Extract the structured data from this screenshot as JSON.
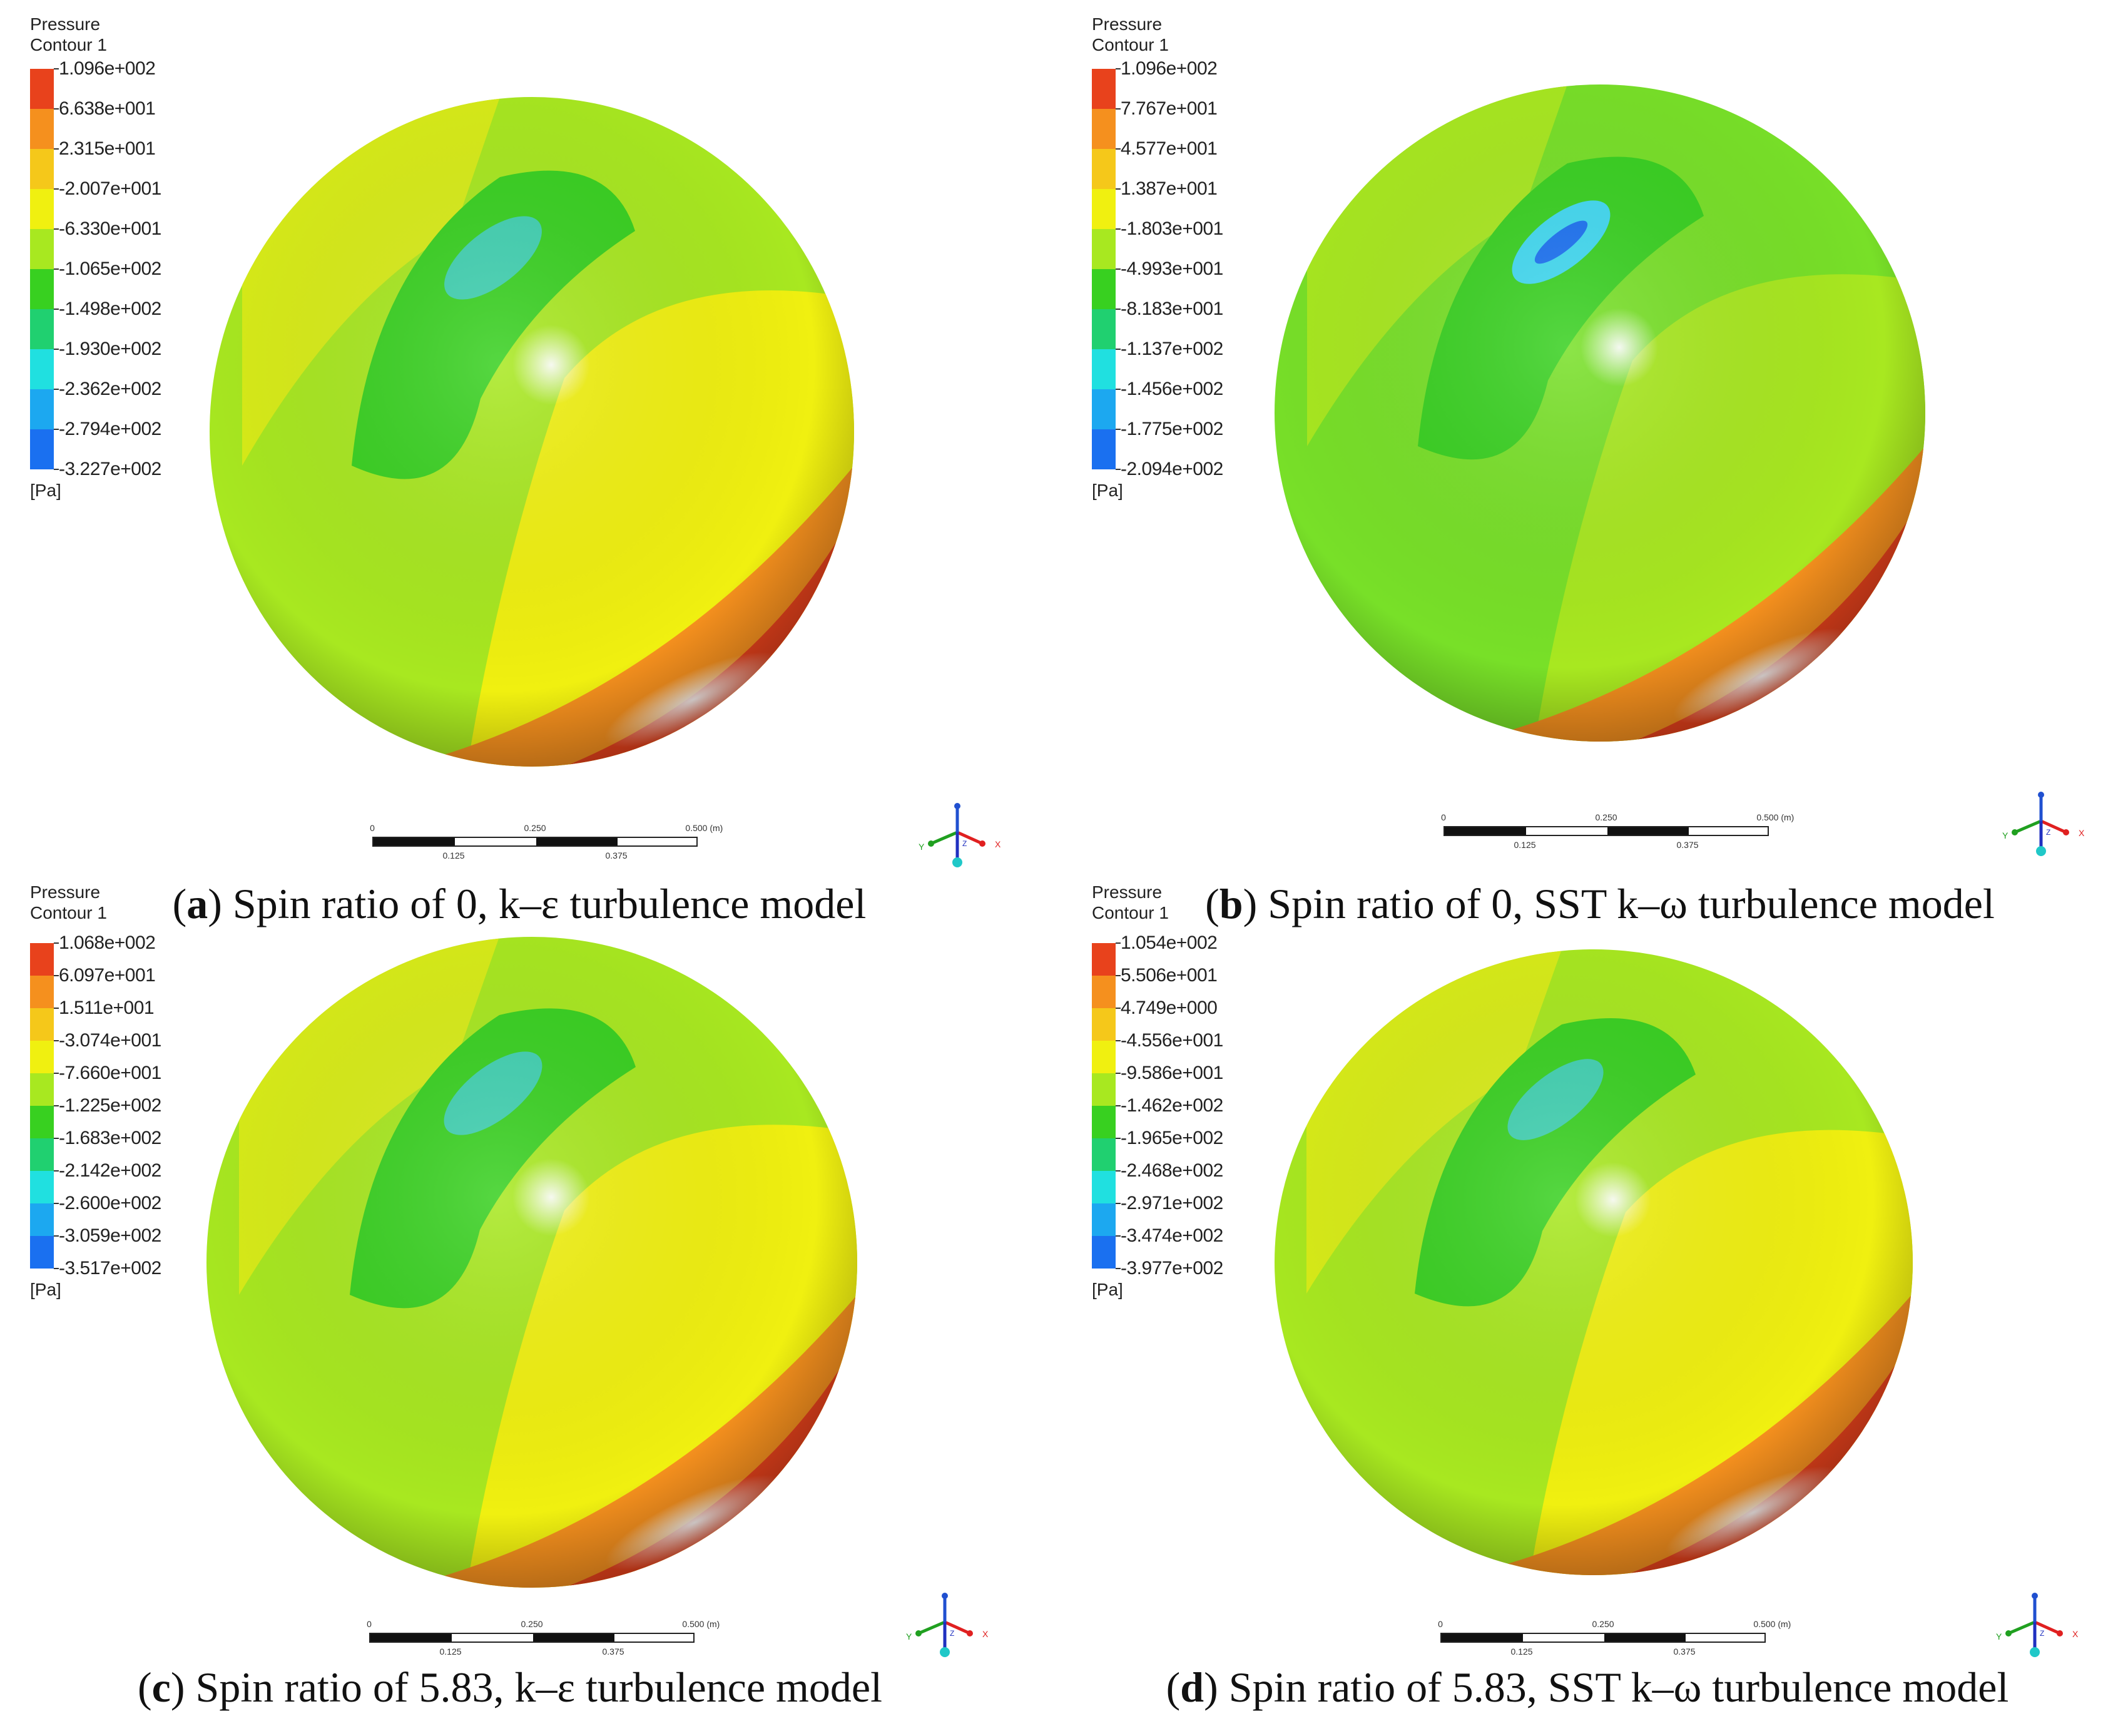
{
  "panels": [
    {
      "legend_title_line1": "Pressure",
      "legend_title_line2": "Contour 1",
      "ticks": [
        "1.096e+002",
        "6.638e+001",
        "2.315e+001",
        "-2.007e+001",
        "-6.330e+001",
        "-1.065e+002",
        "-1.498e+002",
        "-1.930e+002",
        "-2.362e+002",
        "-2.794e+002",
        "-3.227e+002"
      ],
      "unit": "[Pa]",
      "scale": {
        "l0": "0",
        "l1": "0.250",
        "l2": "0.500",
        "unit": "(m)",
        "m1": "0.125",
        "m2": "0.375"
      },
      "axis_x": "X",
      "axis_y": "Y",
      "axis_z": "Z",
      "caption_letter": "a",
      "caption_text": " Spin ratio of 0, k–ε turbulence model"
    },
    {
      "legend_title_line1": "Pressure",
      "legend_title_line2": "Contour 1",
      "ticks": [
        "1.096e+002",
        "7.767e+001",
        "4.577e+001",
        "1.387e+001",
        "-1.803e+001",
        "-4.993e+001",
        "-8.183e+001",
        "-1.137e+002",
        "-1.456e+002",
        "-1.775e+002",
        "-2.094e+002"
      ],
      "unit": "[Pa]",
      "scale": {
        "l0": "0",
        "l1": "0.250",
        "l2": "0.500",
        "unit": "(m)",
        "m1": "0.125",
        "m2": "0.375"
      },
      "axis_x": "X",
      "axis_y": "Y",
      "axis_z": "Z",
      "caption_letter": "b",
      "caption_text": " Spin ratio of 0, SST k–ω turbulence model"
    },
    {
      "legend_title_line1": "Pressure",
      "legend_title_line2": "Contour 1",
      "ticks": [
        "1.068e+002",
        "6.097e+001",
        "1.511e+001",
        "-3.074e+001",
        "-7.660e+001",
        "-1.225e+002",
        "-1.683e+002",
        "-2.142e+002",
        "-2.600e+002",
        "-3.059e+002",
        "-3.517e+002"
      ],
      "unit": "[Pa]",
      "scale": {
        "l0": "0",
        "l1": "0.250",
        "l2": "0.500",
        "unit": "(m)",
        "m1": "0.125",
        "m2": "0.375"
      },
      "axis_x": "X",
      "axis_y": "Y",
      "axis_z": "Z",
      "caption_letter": "c",
      "caption_text": " Spin ratio of 5.83, k–ε turbulence model"
    },
    {
      "legend_title_line1": "Pressure",
      "legend_title_line2": "Contour 1",
      "ticks": [
        "1.054e+002",
        "5.506e+001",
        "4.749e+000",
        "-4.556e+001",
        "-9.586e+001",
        "-1.462e+002",
        "-1.965e+002",
        "-2.468e+002",
        "-2.971e+002",
        "-3.474e+002",
        "-3.977e+002"
      ],
      "unit": "[Pa]",
      "scale": {
        "l0": "0",
        "l1": "0.250",
        "l2": "0.500",
        "unit": "(m)",
        "m1": "0.125",
        "m2": "0.375"
      },
      "axis_x": "X",
      "axis_y": "Y",
      "axis_z": "Z",
      "caption_letter": "d",
      "caption_text": " Spin ratio of 5.83, SST k–ω turbulence model"
    }
  ],
  "colormap": [
    "#e8421c",
    "#f5901e",
    "#f5c81a",
    "#f0f010",
    "#a8e820",
    "#38d020",
    "#20d070",
    "#20e0e0",
    "#1ca8f0",
    "#1a70f0",
    "#1a3cf0"
  ],
  "colors": {
    "red": "#e8421c",
    "orange": "#f5901e",
    "yellow": "#f0f010",
    "lime": "#a8e820",
    "green": "#38d020",
    "cyan": "#20e0e0",
    "blue": "#1a3cf0"
  }
}
